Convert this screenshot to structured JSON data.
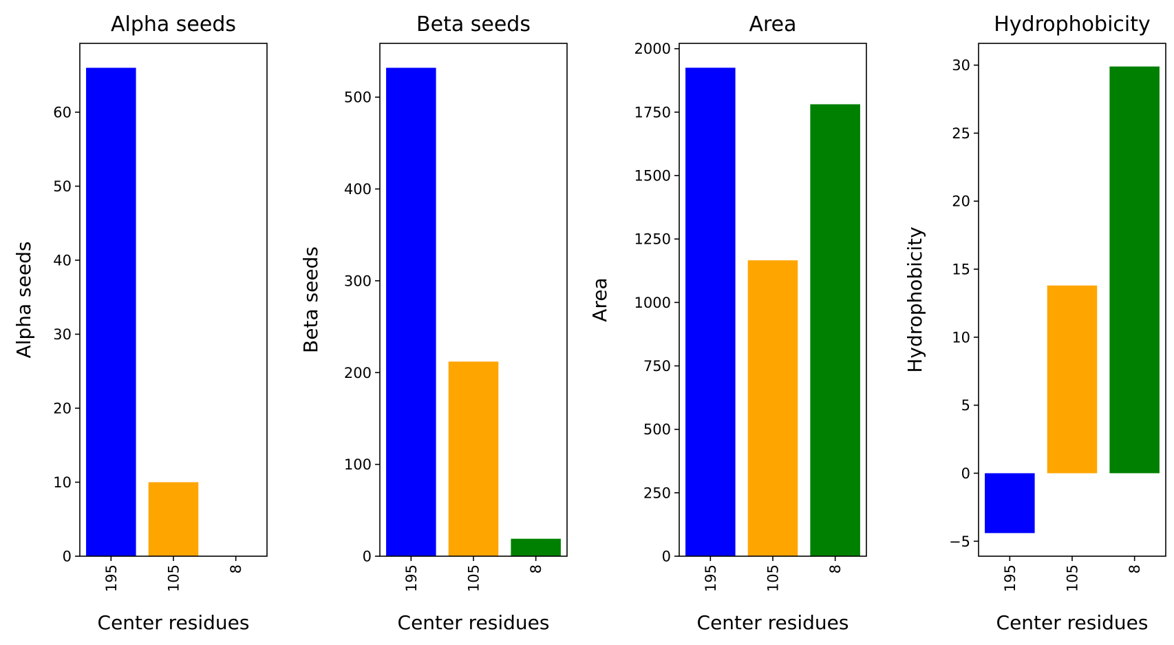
{
  "chart_data": [
    {
      "type": "bar",
      "title": "Alpha seeds",
      "xlabel": "Center residues",
      "ylabel": "Alpha seeds",
      "categories": [
        "195",
        "105",
        "8"
      ],
      "values": [
        66,
        10,
        0
      ],
      "colors": [
        "#0000ff",
        "#ffa500",
        "#008000"
      ],
      "ylim": [
        0,
        69.3
      ],
      "yticks": [
        0,
        10,
        20,
        30,
        40,
        50,
        60
      ],
      "ytick_labels": [
        "0",
        "10",
        "20",
        "30",
        "40",
        "50",
        "60"
      ],
      "grid": false
    },
    {
      "type": "bar",
      "title": "Beta seeds",
      "xlabel": "Center residues",
      "ylabel": "Beta seeds",
      "categories": [
        "195",
        "105",
        "8"
      ],
      "values": [
        532,
        212,
        19
      ],
      "colors": [
        "#0000ff",
        "#ffa500",
        "#008000"
      ],
      "ylim": [
        0,
        558.6
      ],
      "yticks": [
        0,
        100,
        200,
        300,
        400,
        500
      ],
      "ytick_labels": [
        "0",
        "100",
        "200",
        "300",
        "400",
        "500"
      ],
      "grid": false
    },
    {
      "type": "bar",
      "title": "Area",
      "xlabel": "Center residues",
      "ylabel": "Area",
      "categories": [
        "195",
        "105",
        "8"
      ],
      "values": [
        1925,
        1166,
        1781
      ],
      "colors": [
        "#0000ff",
        "#ffa500",
        "#008000"
      ],
      "ylim": [
        0,
        2021
      ],
      "yticks": [
        0,
        250,
        500,
        750,
        1000,
        1250,
        1500,
        1750,
        2000
      ],
      "ytick_labels": [
        "0",
        "250",
        "500",
        "750",
        "1000",
        "1250",
        "1500",
        "1750",
        "2000"
      ],
      "grid": false
    },
    {
      "type": "bar",
      "title": "Hydrophobicity",
      "xlabel": "Center residues",
      "ylabel": "Hydrophobicity",
      "categories": [
        "195",
        "105",
        "8"
      ],
      "values": [
        -4.4,
        13.8,
        29.9
      ],
      "colors": [
        "#0000ff",
        "#ffa500",
        "#008000"
      ],
      "ylim": [
        -6.1,
        31.6
      ],
      "yticks": [
        -5,
        0,
        5,
        10,
        15,
        20,
        25,
        30
      ],
      "ytick_labels": [
        "−5",
        "0",
        "5",
        "10",
        "15",
        "20",
        "25",
        "30"
      ],
      "grid": false
    }
  ]
}
